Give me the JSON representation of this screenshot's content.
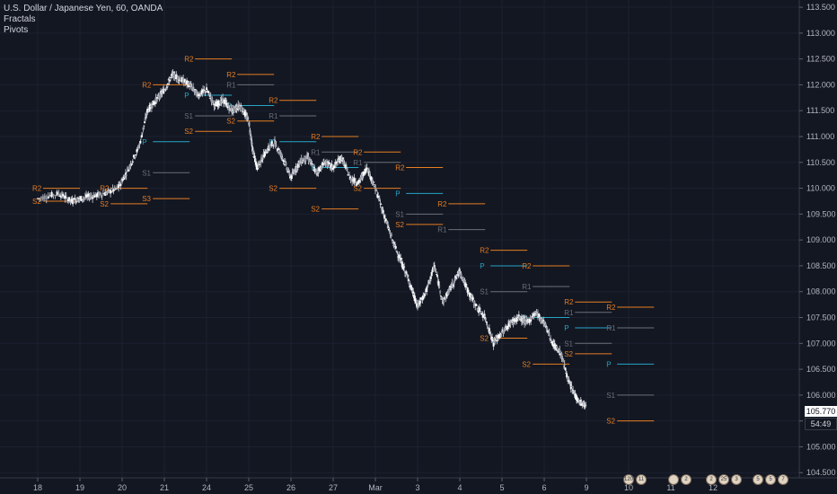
{
  "legend": {
    "symbol": "U.S. Dollar / Japanese Yen, 60, OANDA",
    "indicator1": "Fractals",
    "indicator2": "Pivots"
  },
  "price_tags": {
    "last": "105.770",
    "countdown": "54:49"
  },
  "events_row": [
    {
      "labels": [
        "120",
        "11"
      ]
    },
    {
      "labels": [
        "2"
      ]
    },
    {
      "labels": [
        "2",
        "25",
        "3"
      ]
    },
    {
      "labels": [
        "5",
        "5",
        "7"
      ]
    }
  ],
  "colors": {
    "background": "#131722",
    "candle": "#d1d4dc",
    "pivot": "#26a5c7",
    "resistance2": "#e67e22",
    "support2": "#e67e22",
    "r1s1": "#6b6f78",
    "price_tag_bg": "#ffffff",
    "countdown_bg": "#131722"
  },
  "chart_data": {
    "type": "candlestick",
    "yaxis_ticks": [
      "113.500",
      "113.000",
      "112.500",
      "112.000",
      "111.500",
      "111.000",
      "110.500",
      "110.000",
      "109.500",
      "109.000",
      "108.500",
      "108.000",
      "107.500",
      "107.000",
      "106.500",
      "106.000",
      "105.500",
      "105.000",
      "104.500"
    ],
    "ylim": [
      104.5,
      113.5
    ],
    "xaxis_ticks": [
      "18",
      "19",
      "20",
      "21",
      "24",
      "25",
      "26",
      "27",
      "Mar",
      "3",
      "4",
      "5",
      "6",
      "9",
      "10",
      "11",
      "12"
    ],
    "xlim": [
      0,
      16.5
    ],
    "series_path": [
      [
        0.0,
        109.8
      ],
      [
        0.5,
        109.9
      ],
      [
        0.8,
        109.75
      ],
      [
        1.0,
        109.8
      ],
      [
        1.3,
        109.85
      ],
      [
        1.6,
        109.9
      ],
      [
        1.9,
        110.0
      ],
      [
        2.1,
        110.3
      ],
      [
        2.4,
        110.8
      ],
      [
        2.6,
        111.5
      ],
      [
        2.8,
        111.7
      ],
      [
        3.0,
        111.9
      ],
      [
        3.2,
        112.2
      ],
      [
        3.4,
        112.1
      ],
      [
        3.6,
        112.0
      ],
      [
        3.8,
        111.8
      ],
      [
        4.0,
        111.9
      ],
      [
        4.2,
        111.6
      ],
      [
        4.4,
        111.7
      ],
      [
        4.6,
        111.5
      ],
      [
        4.8,
        111.6
      ],
      [
        5.0,
        111.3
      ],
      [
        5.1,
        110.7
      ],
      [
        5.2,
        110.4
      ],
      [
        5.4,
        110.7
      ],
      [
        5.6,
        110.9
      ],
      [
        5.8,
        110.6
      ],
      [
        6.0,
        110.2
      ],
      [
        6.2,
        110.5
      ],
      [
        6.4,
        110.6
      ],
      [
        6.6,
        110.3
      ],
      [
        6.8,
        110.5
      ],
      [
        7.0,
        110.4
      ],
      [
        7.2,
        110.6
      ],
      [
        7.4,
        110.2
      ],
      [
        7.6,
        110.1
      ],
      [
        7.8,
        110.4
      ],
      [
        8.0,
        110.0
      ],
      [
        8.2,
        109.5
      ],
      [
        8.4,
        109.0
      ],
      [
        8.6,
        108.6
      ],
      [
        8.8,
        108.2
      ],
      [
        9.0,
        107.7
      ],
      [
        9.2,
        108.0
      ],
      [
        9.4,
        108.5
      ],
      [
        9.6,
        107.8
      ],
      [
        9.8,
        108.1
      ],
      [
        10.0,
        108.4
      ],
      [
        10.2,
        108.0
      ],
      [
        10.4,
        107.7
      ],
      [
        10.6,
        107.5
      ],
      [
        10.8,
        107.0
      ],
      [
        11.0,
        107.2
      ],
      [
        11.2,
        107.4
      ],
      [
        11.4,
        107.5
      ],
      [
        11.6,
        107.4
      ],
      [
        11.8,
        107.6
      ],
      [
        12.0,
        107.4
      ],
      [
        12.2,
        107.0
      ],
      [
        12.4,
        106.8
      ],
      [
        12.6,
        106.2
      ],
      [
        12.8,
        105.9
      ],
      [
        13.0,
        105.77
      ]
    ],
    "pivot_levels": [
      {
        "label": "R2",
        "y": 110.0,
        "x0": 0.0,
        "x1": 1.0
      },
      {
        "label": "S2",
        "y": 109.75,
        "x0": 0.0,
        "x1": 1.0
      },
      {
        "label": "R2",
        "y": 110.0,
        "x0": 1.6,
        "x1": 2.6
      },
      {
        "label": "S2",
        "y": 109.7,
        "x0": 1.6,
        "x1": 2.6
      },
      {
        "label": "S3",
        "y": 109.8,
        "x0": 2.6,
        "x1": 3.6
      },
      {
        "label": "R2",
        "y": 112.0,
        "x0": 2.6,
        "x1": 3.6
      },
      {
        "label": "P",
        "y": 110.9,
        "x0": 2.6,
        "x1": 3.6
      },
      {
        "label": "S1",
        "y": 110.3,
        "x0": 2.6,
        "x1": 3.6
      },
      {
        "label": "R2",
        "y": 112.5,
        "x0": 3.6,
        "x1": 4.6
      },
      {
        "label": "P",
        "y": 111.8,
        "x0": 3.6,
        "x1": 4.6
      },
      {
        "label": "S1",
        "y": 111.4,
        "x0": 3.6,
        "x1": 4.6
      },
      {
        "label": "S2",
        "y": 111.1,
        "x0": 3.6,
        "x1": 4.6
      },
      {
        "label": "R2",
        "y": 112.2,
        "x0": 4.6,
        "x1": 5.6
      },
      {
        "label": "R1",
        "y": 112.0,
        "x0": 4.6,
        "x1": 5.6
      },
      {
        "label": "P",
        "y": 111.6,
        "x0": 4.6,
        "x1": 5.6
      },
      {
        "label": "S2",
        "y": 111.3,
        "x0": 4.6,
        "x1": 5.6
      },
      {
        "label": "R2",
        "y": 111.7,
        "x0": 5.6,
        "x1": 6.6
      },
      {
        "label": "R1",
        "y": 111.4,
        "x0": 5.6,
        "x1": 6.6
      },
      {
        "label": "P",
        "y": 110.9,
        "x0": 5.6,
        "x1": 6.6
      },
      {
        "label": "S2",
        "y": 110.0,
        "x0": 5.6,
        "x1": 6.6
      },
      {
        "label": "R2",
        "y": 111.0,
        "x0": 6.6,
        "x1": 7.6
      },
      {
        "label": "R1",
        "y": 110.7,
        "x0": 6.6,
        "x1": 7.6
      },
      {
        "label": "P",
        "y": 110.4,
        "x0": 6.6,
        "x1": 7.6
      },
      {
        "label": "S2",
        "y": 109.6,
        "x0": 6.6,
        "x1": 7.6
      },
      {
        "label": "R2",
        "y": 110.7,
        "x0": 7.6,
        "x1": 8.6
      },
      {
        "label": "R1",
        "y": 110.5,
        "x0": 7.6,
        "x1": 8.6
      },
      {
        "label": "S2",
        "y": 110.0,
        "x0": 7.6,
        "x1": 8.6
      },
      {
        "label": "R2",
        "y": 110.4,
        "x0": 8.6,
        "x1": 9.6
      },
      {
        "label": "P",
        "y": 109.9,
        "x0": 8.6,
        "x1": 9.6
      },
      {
        "label": "S1",
        "y": 109.5,
        "x0": 8.6,
        "x1": 9.6
      },
      {
        "label": "S2",
        "y": 109.3,
        "x0": 8.6,
        "x1": 9.6
      },
      {
        "label": "R2",
        "y": 109.7,
        "x0": 9.6,
        "x1": 10.6
      },
      {
        "label": "R1",
        "y": 109.2,
        "x0": 9.6,
        "x1": 10.6
      },
      {
        "label": "R2",
        "y": 108.8,
        "x0": 10.6,
        "x1": 11.6
      },
      {
        "label": "P",
        "y": 108.5,
        "x0": 10.6,
        "x1": 11.6
      },
      {
        "label": "S1",
        "y": 108.0,
        "x0": 10.6,
        "x1": 11.6
      },
      {
        "label": "S2",
        "y": 107.1,
        "x0": 10.6,
        "x1": 11.6
      },
      {
        "label": "R2",
        "y": 108.5,
        "x0": 11.6,
        "x1": 12.6
      },
      {
        "label": "R1",
        "y": 108.1,
        "x0": 11.6,
        "x1": 12.6
      },
      {
        "label": "P",
        "y": 107.5,
        "x0": 11.6,
        "x1": 12.6
      },
      {
        "label": "S2",
        "y": 106.6,
        "x0": 11.6,
        "x1": 12.6
      },
      {
        "label": "R2",
        "y": 107.8,
        "x0": 12.6,
        "x1": 13.6
      },
      {
        "label": "R1",
        "y": 107.6,
        "x0": 12.6,
        "x1": 13.6
      },
      {
        "label": "P",
        "y": 107.3,
        "x0": 12.6,
        "x1": 13.6
      },
      {
        "label": "S1",
        "y": 107.0,
        "x0": 12.6,
        "x1": 13.6
      },
      {
        "label": "S2",
        "y": 106.8,
        "x0": 12.6,
        "x1": 13.6
      },
      {
        "label": "R2",
        "y": 107.7,
        "x0": 13.6,
        "x1": 14.6
      },
      {
        "label": "R1",
        "y": 107.3,
        "x0": 13.6,
        "x1": 14.6
      },
      {
        "label": "P",
        "y": 106.6,
        "x0": 13.6,
        "x1": 14.6
      },
      {
        "label": "S1",
        "y": 106.0,
        "x0": 13.6,
        "x1": 14.6
      },
      {
        "label": "S2",
        "y": 105.5,
        "x0": 13.6,
        "x1": 14.6
      }
    ]
  }
}
